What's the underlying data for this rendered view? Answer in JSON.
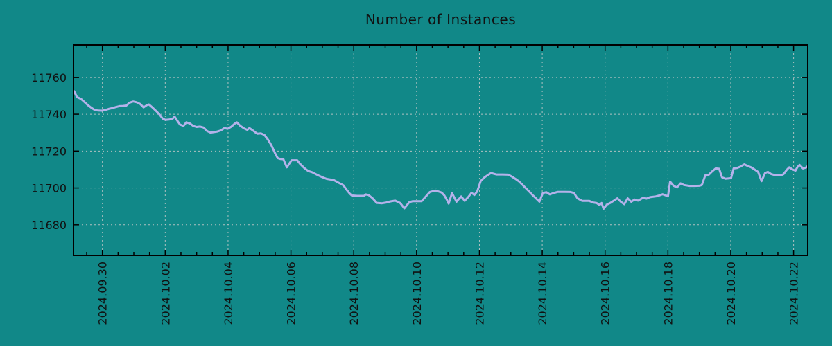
{
  "window": {
    "title": "Number of Instances"
  },
  "colors": {
    "background": "#118888",
    "line": "#b4b2ea",
    "grid": "#cccccc",
    "axis": "#000000",
    "text": "#111111"
  },
  "chart_data": {
    "type": "line",
    "title": "Number of Instances",
    "xlabel": "",
    "ylabel": "",
    "legend": "none",
    "grid": true,
    "x_tick_labels": [
      "2024.09.30",
      "2024.10.02",
      "2024.10.04",
      "2024.10.06",
      "2024.10.08",
      "2024.10.10",
      "2024.10.12",
      "2024.10.14",
      "2024.10.16",
      "2024.10.18",
      "2024.10.20",
      "2024.10.22"
    ],
    "x_tick_days": [
      0,
      2,
      4,
      6,
      8,
      10,
      12,
      14,
      16,
      18,
      20,
      22
    ],
    "x_minor_tick_step_days": 0.5,
    "y_ticks": [
      11680,
      11700,
      11720,
      11740,
      11760
    ],
    "xlim_days": [
      -0.92,
      22.45
    ],
    "ylim": [
      11663.4,
      11777.6
    ],
    "series": [
      {
        "name": "Number of Instances",
        "points": [
          [
            -0.9,
            11752.5
          ],
          [
            -0.81,
            11749.3
          ],
          [
            -0.68,
            11748.3
          ],
          [
            -0.57,
            11746.6
          ],
          [
            -0.46,
            11744.9
          ],
          [
            -0.35,
            11743.5
          ],
          [
            -0.24,
            11742.3
          ],
          [
            -0.13,
            11742.0
          ],
          [
            -0.02,
            11741.9
          ],
          [
            0.09,
            11742.3
          ],
          [
            0.2,
            11742.9
          ],
          [
            0.31,
            11743.3
          ],
          [
            0.43,
            11743.9
          ],
          [
            0.54,
            11744.4
          ],
          [
            0.65,
            11744.5
          ],
          [
            0.76,
            11744.7
          ],
          [
            0.87,
            11746.3
          ],
          [
            0.98,
            11746.9
          ],
          [
            1.09,
            11746.5
          ],
          [
            1.2,
            11745.6
          ],
          [
            1.31,
            11743.7
          ],
          [
            1.42,
            11745.0
          ],
          [
            1.48,
            11745.3
          ],
          [
            1.59,
            11743.7
          ],
          [
            1.7,
            11741.9
          ],
          [
            1.81,
            11740.0
          ],
          [
            1.92,
            11737.6
          ],
          [
            2.01,
            11736.9
          ],
          [
            2.12,
            11737.1
          ],
          [
            2.23,
            11737.5
          ],
          [
            2.3,
            11738.7
          ],
          [
            2.36,
            11737.1
          ],
          [
            2.47,
            11734.4
          ],
          [
            2.58,
            11733.7
          ],
          [
            2.67,
            11735.6
          ],
          [
            2.78,
            11735.0
          ],
          [
            2.89,
            11733.7
          ],
          [
            3.0,
            11733.1
          ],
          [
            3.11,
            11733.3
          ],
          [
            3.22,
            11732.8
          ],
          [
            3.33,
            11730.9
          ],
          [
            3.44,
            11730.0
          ],
          [
            3.55,
            11730.3
          ],
          [
            3.66,
            11730.6
          ],
          [
            3.77,
            11731.2
          ],
          [
            3.88,
            11732.5
          ],
          [
            3.99,
            11732.1
          ],
          [
            4.11,
            11733.3
          ],
          [
            4.22,
            11735.0
          ],
          [
            4.28,
            11735.6
          ],
          [
            4.39,
            11733.7
          ],
          [
            4.5,
            11732.4
          ],
          [
            4.61,
            11731.5
          ],
          [
            4.68,
            11732.5
          ],
          [
            4.79,
            11731.2
          ],
          [
            4.88,
            11730.0
          ],
          [
            4.94,
            11729.4
          ],
          [
            5.05,
            11729.6
          ],
          [
            5.16,
            11728.7
          ],
          [
            5.27,
            11726.2
          ],
          [
            5.38,
            11723.1
          ],
          [
            5.49,
            11719.0
          ],
          [
            5.58,
            11716.2
          ],
          [
            5.67,
            11715.7
          ],
          [
            5.76,
            11715.6
          ],
          [
            5.87,
            11711.2
          ],
          [
            6.02,
            11715.0
          ],
          [
            6.2,
            11715.0
          ],
          [
            6.29,
            11713.1
          ],
          [
            6.42,
            11710.9
          ],
          [
            6.55,
            11709.2
          ],
          [
            6.68,
            11708.5
          ],
          [
            6.84,
            11707.1
          ],
          [
            6.99,
            11705.9
          ],
          [
            7.14,
            11704.9
          ],
          [
            7.36,
            11704.3
          ],
          [
            7.5,
            11703.0
          ],
          [
            7.61,
            11702.0
          ],
          [
            7.67,
            11701.4
          ],
          [
            7.78,
            11698.9
          ],
          [
            7.87,
            11697.0
          ],
          [
            7.94,
            11695.9
          ],
          [
            8.11,
            11695.7
          ],
          [
            8.33,
            11695.7
          ],
          [
            8.38,
            11696.5
          ],
          [
            8.47,
            11696.2
          ],
          [
            8.6,
            11694.4
          ],
          [
            8.73,
            11691.9
          ],
          [
            8.9,
            11691.7
          ],
          [
            9.04,
            11692.1
          ],
          [
            9.17,
            11692.7
          ],
          [
            9.32,
            11693.1
          ],
          [
            9.48,
            11691.8
          ],
          [
            9.61,
            11688.9
          ],
          [
            9.7,
            11690.8
          ],
          [
            9.77,
            11692.3
          ],
          [
            9.88,
            11692.8
          ],
          [
            9.98,
            11692.8
          ],
          [
            10.16,
            11692.8
          ],
          [
            10.27,
            11694.9
          ],
          [
            10.42,
            11697.8
          ],
          [
            10.6,
            11698.6
          ],
          [
            10.8,
            11697.5
          ],
          [
            10.89,
            11695.8
          ],
          [
            10.98,
            11693.1
          ],
          [
            11.02,
            11691.5
          ],
          [
            11.13,
            11697.2
          ],
          [
            11.27,
            11692.5
          ],
          [
            11.42,
            11695.4
          ],
          [
            11.53,
            11693.0
          ],
          [
            11.64,
            11695.0
          ],
          [
            11.75,
            11697.4
          ],
          [
            11.84,
            11696.2
          ],
          [
            11.93,
            11698.1
          ],
          [
            12.04,
            11703.7
          ],
          [
            12.15,
            11705.6
          ],
          [
            12.26,
            11706.9
          ],
          [
            12.37,
            11708.1
          ],
          [
            12.54,
            11707.3
          ],
          [
            12.74,
            11707.3
          ],
          [
            12.92,
            11707.2
          ],
          [
            13.03,
            11706.2
          ],
          [
            13.14,
            11705.0
          ],
          [
            13.25,
            11703.7
          ],
          [
            13.36,
            11701.9
          ],
          [
            13.47,
            11700.0
          ],
          [
            13.58,
            11698.1
          ],
          [
            13.69,
            11696.2
          ],
          [
            13.8,
            11694.4
          ],
          [
            13.91,
            11692.5
          ],
          [
            14.02,
            11697.3
          ],
          [
            14.13,
            11697.7
          ],
          [
            14.24,
            11696.5
          ],
          [
            14.35,
            11697.2
          ],
          [
            14.5,
            11697.9
          ],
          [
            14.72,
            11697.9
          ],
          [
            14.9,
            11697.8
          ],
          [
            15.01,
            11697.3
          ],
          [
            15.12,
            11694.4
          ],
          [
            15.27,
            11693.0
          ],
          [
            15.49,
            11693.0
          ],
          [
            15.62,
            11692.1
          ],
          [
            15.73,
            11691.8
          ],
          [
            15.82,
            11690.8
          ],
          [
            15.89,
            11691.8
          ],
          [
            15.95,
            11688.7
          ],
          [
            16.06,
            11691.0
          ],
          [
            16.17,
            11691.9
          ],
          [
            16.28,
            11693.1
          ],
          [
            16.39,
            11694.4
          ],
          [
            16.5,
            11692.5
          ],
          [
            16.61,
            11691.2
          ],
          [
            16.72,
            11694.4
          ],
          [
            16.83,
            11692.5
          ],
          [
            16.94,
            11693.7
          ],
          [
            17.05,
            11693.1
          ],
          [
            17.21,
            11694.7
          ],
          [
            17.32,
            11694.2
          ],
          [
            17.43,
            11695.0
          ],
          [
            17.61,
            11695.4
          ],
          [
            17.72,
            11695.9
          ],
          [
            17.83,
            11696.6
          ],
          [
            17.94,
            11695.9
          ],
          [
            18.0,
            11695.4
          ],
          [
            18.07,
            11703.4
          ],
          [
            18.18,
            11701.2
          ],
          [
            18.29,
            11700.3
          ],
          [
            18.4,
            11702.5
          ],
          [
            18.51,
            11701.6
          ],
          [
            18.69,
            11701.1
          ],
          [
            18.86,
            11701.1
          ],
          [
            19.0,
            11701.2
          ],
          [
            19.08,
            11701.6
          ],
          [
            19.19,
            11706.9
          ],
          [
            19.3,
            11707.2
          ],
          [
            19.41,
            11709.0
          ],
          [
            19.52,
            11710.6
          ],
          [
            19.63,
            11710.4
          ],
          [
            19.72,
            11705.8
          ],
          [
            19.83,
            11705.0
          ],
          [
            19.94,
            11705.2
          ],
          [
            20.01,
            11705.3
          ],
          [
            20.09,
            11710.6
          ],
          [
            20.2,
            11710.8
          ],
          [
            20.31,
            11711.6
          ],
          [
            20.43,
            11712.8
          ],
          [
            20.54,
            11711.9
          ],
          [
            20.65,
            11711.2
          ],
          [
            20.76,
            11710.0
          ],
          [
            20.87,
            11708.7
          ],
          [
            20.98,
            11703.7
          ],
          [
            21.09,
            11708.1
          ],
          [
            21.18,
            11708.7
          ],
          [
            21.29,
            11707.5
          ],
          [
            21.42,
            11706.9
          ],
          [
            21.6,
            11706.9
          ],
          [
            21.68,
            11707.5
          ],
          [
            21.79,
            11710.0
          ],
          [
            21.86,
            11711.2
          ],
          [
            21.97,
            11710.0
          ],
          [
            22.06,
            11709.4
          ],
          [
            22.12,
            11711.2
          ],
          [
            22.19,
            11712.5
          ],
          [
            22.3,
            11710.6
          ],
          [
            22.41,
            11711.2
          ],
          [
            22.43,
            11711.6
          ]
        ]
      }
    ]
  }
}
